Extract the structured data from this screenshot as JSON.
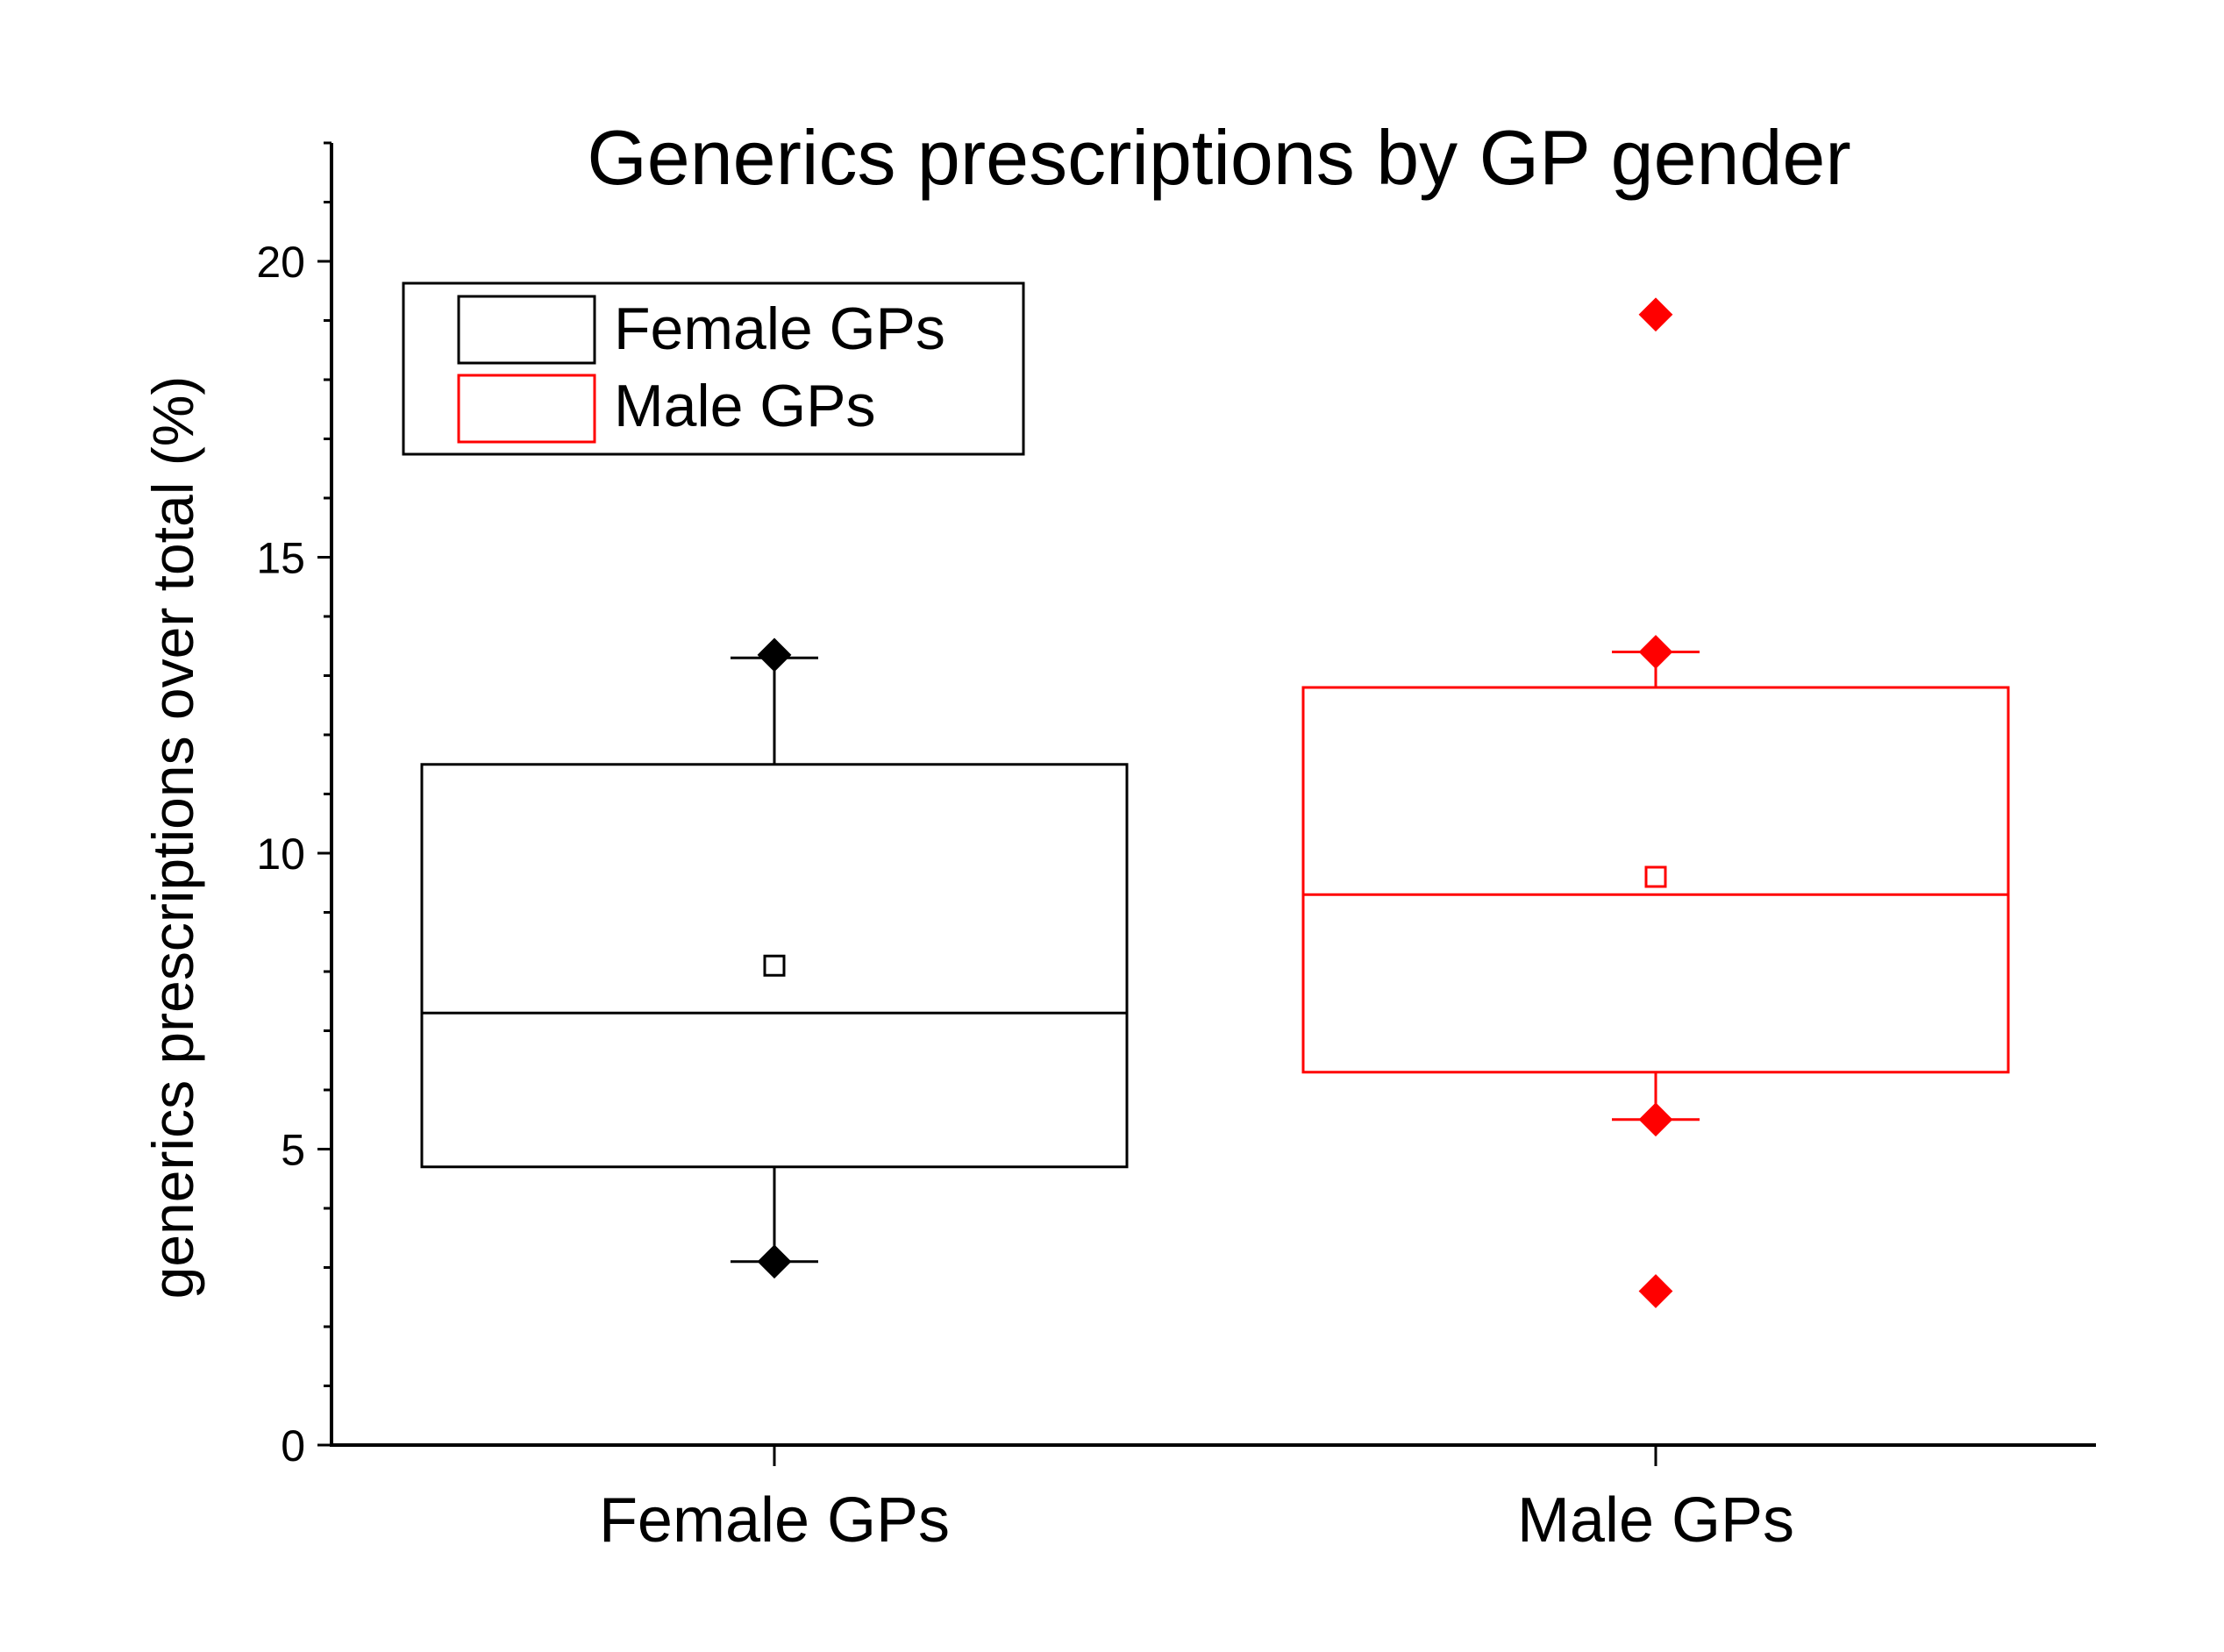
{
  "chart_data": {
    "type": "box",
    "title": "Generics prescriptions by GP gender",
    "xlabel": "",
    "ylabel": "generics prescriptions over total (%)",
    "ylim": [
      0,
      22
    ],
    "yticks": [
      0,
      5,
      10,
      15,
      20
    ],
    "categories": [
      "Female GPs",
      "Male GPs"
    ],
    "legend": {
      "position": "top-left",
      "entries": [
        "Female GPs",
        "Male GPs"
      ]
    },
    "series": [
      {
        "name": "Female GPs",
        "color": "#000000",
        "whisker_low": 3.1,
        "q1": 4.7,
        "median": 7.3,
        "q3": 11.5,
        "whisker_high": 13.3,
        "mean": 8.1,
        "outliers": [
          3.1,
          13.35
        ]
      },
      {
        "name": "Male GPs",
        "color": "#ff0000",
        "whisker_low": 5.5,
        "q1": 6.3,
        "median": 9.3,
        "q3": 12.8,
        "whisker_high": 13.4,
        "mean": 9.6,
        "outliers": [
          2.6,
          5.5,
          13.4,
          19.1
        ]
      }
    ]
  }
}
